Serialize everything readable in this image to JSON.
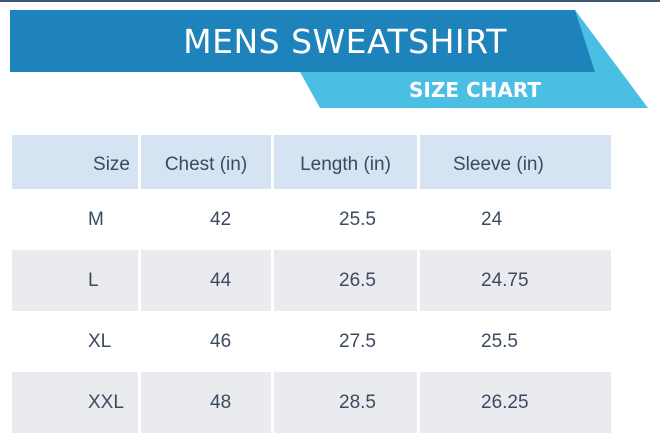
{
  "header": {
    "title": "MENS SWEATSHIRT",
    "subtitle": "SIZE CHART",
    "colors": {
      "dark_band": "#1e82bb",
      "light_band": "#4bbfe3"
    }
  },
  "table": {
    "columns": [
      "Size",
      "Chest (in)",
      "Length (in)",
      "Sleeve (in)"
    ],
    "rows": [
      [
        "M",
        "42",
        "25.5",
        "24"
      ],
      [
        "L",
        "44",
        "26.5",
        "24.75"
      ],
      [
        "XL",
        "46",
        "27.5",
        "25.5"
      ],
      [
        "XXL",
        "48",
        "28.5",
        "26.25"
      ]
    ]
  }
}
